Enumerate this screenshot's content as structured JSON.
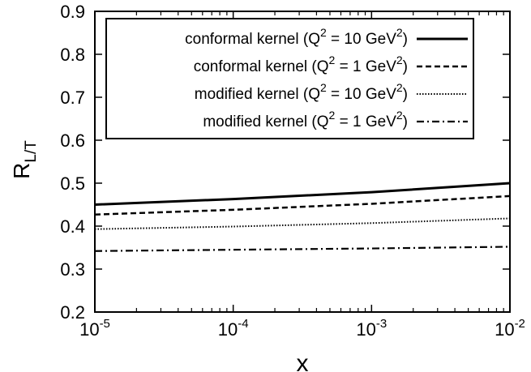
{
  "chart_data": {
    "type": "line",
    "xscale": "log",
    "xlim": [
      1e-05,
      0.01
    ],
    "ylim": [
      0.2,
      0.9
    ],
    "xlabel": "x",
    "ylabel": {
      "main": "R",
      "sub": "L/T"
    },
    "grid": false,
    "legend_position": "top-right",
    "xticks": [
      {
        "value": 1e-05,
        "base": "10",
        "exp": "-5"
      },
      {
        "value": 0.0001,
        "base": "10",
        "exp": "-4"
      },
      {
        "value": 0.001,
        "base": "10",
        "exp": "-3"
      },
      {
        "value": 0.01,
        "base": "10",
        "exp": "-2"
      }
    ],
    "yticks": [
      {
        "value": 0.2,
        "label": "0.2"
      },
      {
        "value": 0.3,
        "label": "0.3"
      },
      {
        "value": 0.4,
        "label": "0.4"
      },
      {
        "value": 0.5,
        "label": "0.5"
      },
      {
        "value": 0.6,
        "label": "0.6"
      },
      {
        "value": 0.7,
        "label": "0.7"
      },
      {
        "value": 0.8,
        "label": "0.8"
      },
      {
        "value": 0.9,
        "label": "0.9"
      }
    ],
    "series": [
      {
        "legend": {
          "prefix": "conformal kernel (Q",
          "sup1": "2",
          "middle": " = 10 GeV",
          "sup2": "2",
          "suffix": ")"
        },
        "style": "solid",
        "color": "#000000",
        "x": [
          1e-05,
          0.0001,
          0.001,
          0.01
        ],
        "y": [
          0.45,
          0.463,
          0.479,
          0.5
        ]
      },
      {
        "legend": {
          "prefix": "conformal kernel (Q",
          "sup1": "2",
          "middle": " =   1 GeV",
          "sup2": "2",
          "suffix": ")"
        },
        "style": "dashed",
        "color": "#000000",
        "x": [
          1e-05,
          0.0001,
          0.001,
          0.01
        ],
        "y": [
          0.427,
          0.438,
          0.452,
          0.47
        ]
      },
      {
        "legend": {
          "prefix": "modified kernel (Q",
          "sup1": "2",
          "middle": " = 10 GeV",
          "sup2": "2",
          "suffix": ")"
        },
        "style": "dotted",
        "color": "#000000",
        "x": [
          1e-05,
          0.0001,
          0.001,
          0.01
        ],
        "y": [
          0.393,
          0.399,
          0.407,
          0.418
        ]
      },
      {
        "legend": {
          "prefix": "modified kernel (Q",
          "sup1": "2",
          "middle": " =   1 GeV",
          "sup2": "2",
          "suffix": ")"
        },
        "style": "dashdot",
        "color": "#000000",
        "x": [
          1e-05,
          0.0001,
          0.001,
          0.01
        ],
        "y": [
          0.342,
          0.345,
          0.348,
          0.352
        ]
      }
    ]
  }
}
